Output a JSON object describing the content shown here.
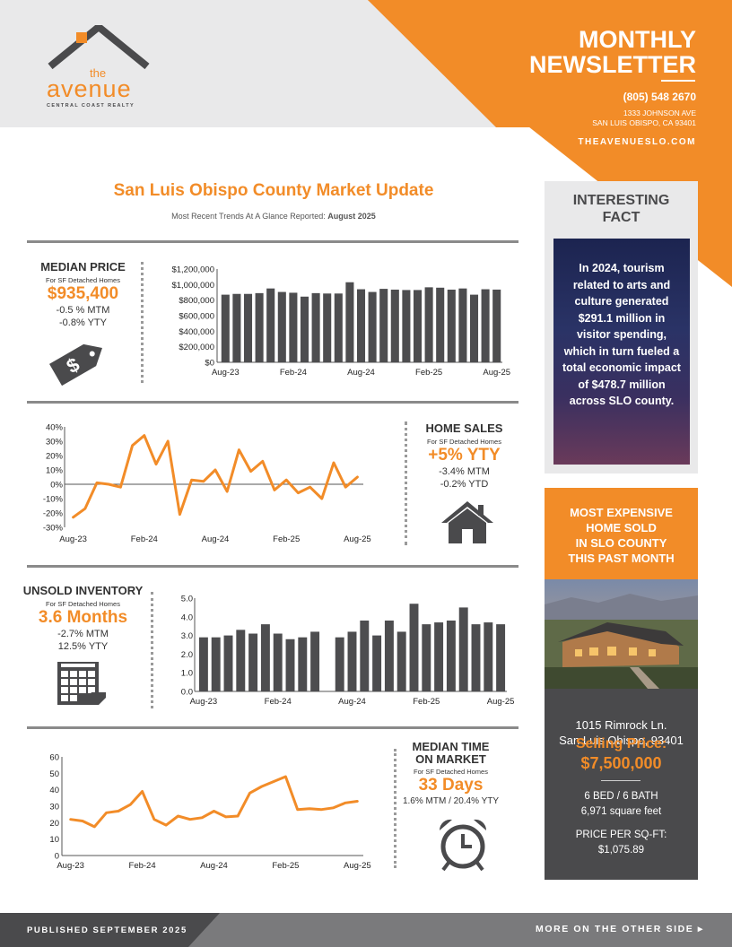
{
  "header": {
    "logo_small": "the",
    "logo_main": "avenue",
    "logo_tagline": "CENTRAL COAST REALTY",
    "title_line1": "MONTHLY",
    "title_line2": "NEWSLETTER",
    "phone": "(805) 548 2670",
    "address_line1": "1333 JOHNSON AVE",
    "address_line2": "SAN LUIS OBISPO, CA 93401",
    "website": "THEAVENUESLO.COM"
  },
  "market": {
    "title": "San Luis Obispo County Market Update",
    "subtitle": "Most Recent Trends At A Glance Reported:",
    "reported": "August 2025"
  },
  "stats": {
    "median_price": {
      "label": "MEDIAN PRICE",
      "sub": "For SF Detached Homes",
      "value": "$935,400",
      "line1": "-0.5 % MTM",
      "line2": "-0.8% YTY"
    },
    "home_sales": {
      "label": "HOME SALES",
      "sub": "For SF Detached Homes",
      "value": "+5% YTY",
      "line1": "-3.4% MTM",
      "line2": "-0.2% YTD"
    },
    "inventory": {
      "label": "UNSOLD INVENTORY",
      "sub": "For SF Detached Homes",
      "value": "3.6 Months",
      "line1": "-2.7% MTM",
      "line2": "12.5% YTY"
    },
    "time_on_market": {
      "label_line1": "MEDIAN TIME",
      "label_line2": "ON MARKET",
      "sub": "For SF Detached Homes",
      "value": "33 Days",
      "line1": "1.6% MTM / 20.4% YTY"
    }
  },
  "fact": {
    "title_line1": "INTERESTING",
    "title_line2": "FACT",
    "text": "In 2024, tourism related to arts and culture generated $291.1 million in visitor spending, which in turn fueled a total economic impact of $478.7 million across SLO county."
  },
  "expensive": {
    "title_line1": "MOST EXPENSIVE",
    "title_line2": "HOME SOLD",
    "title_line3": "IN SLO COUNTY",
    "title_line4": "THIS PAST MONTH",
    "address_line1": "1015 Rimrock Ln.",
    "address_line2": "San Luis Obispo, 93401",
    "price_label": "Selling Price:",
    "price": "$7,500,000",
    "beds_baths": "6 BED / 6 BATH",
    "sqft": "6,971 square feet",
    "ppsf_label": "PRICE PER SQ-FT:",
    "ppsf": "$1,075.89"
  },
  "footer": {
    "published": "PUBLISHED SEPTEMBER 2025",
    "more": "MORE ON THE OTHER SIDE"
  },
  "colors": {
    "accent": "#f28c28",
    "dark": "#4a4a4c",
    "bar": "#4d4d4f",
    "header_bg": "#e9e9ea"
  },
  "chart_data": [
    {
      "type": "bar",
      "title": "",
      "xtick_labels": [
        "Aug-23",
        "Feb-24",
        "Aug-24",
        "Feb-25",
        "Aug-25"
      ],
      "yticks": [
        "$0",
        "$200,000",
        "$400,000",
        "$600,000",
        "$800,000",
        "$1,000,000",
        "$1,200,000"
      ],
      "ylim": [
        0,
        1200000
      ],
      "values": [
        870000,
        880000,
        880000,
        890000,
        950000,
        905000,
        895000,
        845000,
        890000,
        885000,
        885000,
        1030000,
        940000,
        905000,
        945000,
        935000,
        930000,
        930000,
        965000,
        960000,
        935000,
        950000,
        870000,
        940000,
        935400
      ]
    },
    {
      "type": "line",
      "title": "",
      "xtick_labels": [
        "Aug-23",
        "Feb-24",
        "Aug-24",
        "Feb-25",
        "Aug-25"
      ],
      "yticks": [
        "-30%",
        "-20%",
        "-10%",
        "0%",
        "10%",
        "20%",
        "30%",
        "40%"
      ],
      "ylim": [
        -30,
        40
      ],
      "values": [
        -23,
        -17,
        1,
        0,
        -2,
        27,
        34,
        14,
        30,
        -21,
        3,
        2,
        10,
        -5,
        24,
        9,
        16,
        -4,
        3,
        -6,
        -2,
        -10,
        15,
        -2,
        5
      ]
    },
    {
      "type": "bar",
      "title": "",
      "xtick_labels": [
        "Aug-23",
        "Feb-24",
        "Aug-24",
        "Feb-25",
        "Aug-25"
      ],
      "yticks": [
        "0.0",
        "1.0",
        "2.0",
        "3.0",
        "4.0",
        "5.0"
      ],
      "ylim": [
        0,
        5
      ],
      "values": [
        2.9,
        2.9,
        3.0,
        3.3,
        3.1,
        3.6,
        3.1,
        2.8,
        2.9,
        3.2,
        null,
        2.9,
        3.2,
        3.8,
        3.0,
        3.8,
        3.2,
        4.7,
        3.6,
        3.7,
        3.8,
        4.5,
        3.6,
        3.7,
        3.6
      ]
    },
    {
      "type": "line",
      "title": "",
      "xtick_labels": [
        "Aug-23",
        "Feb-24",
        "Aug-24",
        "Feb-25",
        "Aug-25"
      ],
      "yticks": [
        "0",
        "10",
        "20",
        "30",
        "40",
        "50",
        "60"
      ],
      "ylim": [
        0,
        60
      ],
      "values": [
        22,
        21,
        17.5,
        26,
        27,
        31,
        39,
        22,
        18.5,
        24,
        22,
        23,
        27,
        23.5,
        24,
        38,
        42,
        45,
        48,
        28,
        28.5,
        28,
        29,
        32,
        33
      ]
    }
  ]
}
